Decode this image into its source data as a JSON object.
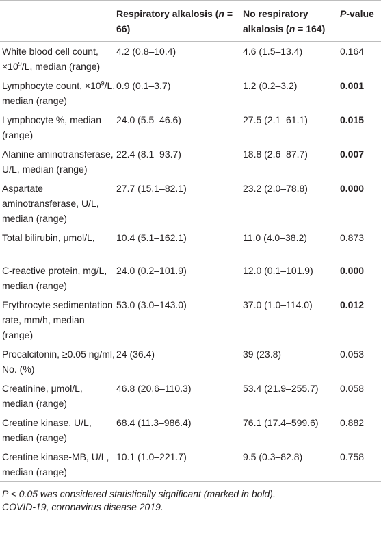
{
  "table": {
    "columns": [
      [
        {
          "text": "Respiratory alkalosis ("
        },
        {
          "text": "n",
          "italic": true
        },
        {
          "text": " = 66)"
        }
      ],
      [
        {
          "text": "No respiratory alkalosis ("
        },
        {
          "text": "n",
          "italic": true
        },
        {
          "text": " = 164)"
        }
      ],
      [
        {
          "text": "P-",
          "italic": true
        },
        {
          "text": "value"
        }
      ]
    ],
    "rows": [
      {
        "label": [
          {
            "text": "White blood cell count, ×10"
          },
          {
            "text": "9",
            "sup": true
          },
          {
            "text": "/L, median (range)"
          }
        ],
        "cells": [
          "4.2 (0.8–10.4)",
          "4.6 (1.5–13.4)",
          "0.164"
        ],
        "bold": false
      },
      {
        "label": [
          {
            "text": "Lymphocyte count, ×10"
          },
          {
            "text": "9",
            "sup": true
          },
          {
            "text": "/L, median (range)"
          }
        ],
        "cells": [
          "0.9 (0.1–3.7)",
          "1.2 (0.2–3.2)",
          "0.001"
        ],
        "bold": true
      },
      {
        "label": [
          {
            "text": "Lymphocyte %, median (range)"
          }
        ],
        "cells": [
          "24.0 (5.5–46.6)",
          "27.5 (2.1–61.1)",
          "0.015"
        ],
        "bold": true
      },
      {
        "label": [
          {
            "text": "Alanine aminotransferase, U/L, median (range)"
          }
        ],
        "cells": [
          "22.4 (8.1–93.7)",
          "18.8 (2.6–87.7)",
          "0.007"
        ],
        "bold": true
      },
      {
        "label": [
          {
            "text": "Aspartate aminotransferase, U/L, median (range)"
          }
        ],
        "cells": [
          "27.7 (15.1–82.1)",
          "23.2 (2.0–78.8)",
          "0.000"
        ],
        "bold": true
      },
      {
        "label": [
          {
            "text": "Total bilirubin, μmol/L,"
          }
        ],
        "cells": [
          "10.4 (5.1–162.1)",
          "11.0 (4.0–38.2)",
          "0.873"
        ],
        "bold": false
      },
      {
        "label": [
          {
            "text": "C-reactive protein, mg/L, median (range)"
          }
        ],
        "cells": [
          "24.0 (0.2–101.9)",
          "12.0 (0.1–101.9)",
          "0.000"
        ],
        "bold": true
      },
      {
        "label": [
          {
            "text": "Erythrocyte sedimentation rate, mm/h, median (range)"
          }
        ],
        "cells": [
          "53.0 (3.0–143.0)",
          "37.0 (1.0–114.0)",
          "0.012"
        ],
        "bold": true
      },
      {
        "label": [
          {
            "text": "Procalcitonin, ≥0.05 ng/ml, No. (%)"
          }
        ],
        "cells": [
          "24 (36.4)",
          "39 (23.8)",
          "0.053"
        ],
        "bold": false
      },
      {
        "label": [
          {
            "text": "Creatinine, μmol/L, median (range)"
          }
        ],
        "cells": [
          "46.8 (20.6–110.3)",
          "53.4 (21.9–255.7)",
          "0.058"
        ],
        "bold": false
      },
      {
        "label": [
          {
            "text": "Creatine kinase, U/L, median (range)"
          }
        ],
        "cells": [
          "68.4 (11.3–986.4)",
          "76.1 (17.4–599.6)",
          "0.882"
        ],
        "bold": false
      },
      {
        "label": [
          {
            "text": "Creatine kinase-MB, U/L, median (range)"
          }
        ],
        "cells": [
          "10.1 (1.0–221.7)",
          "9.5 (0.3–82.8)",
          "0.758"
        ],
        "bold": false
      }
    ]
  },
  "footnotes": [
    "P < 0.05 was considered statistically significant (marked in bold).",
    "COVID-19, coronavirus disease 2019."
  ]
}
